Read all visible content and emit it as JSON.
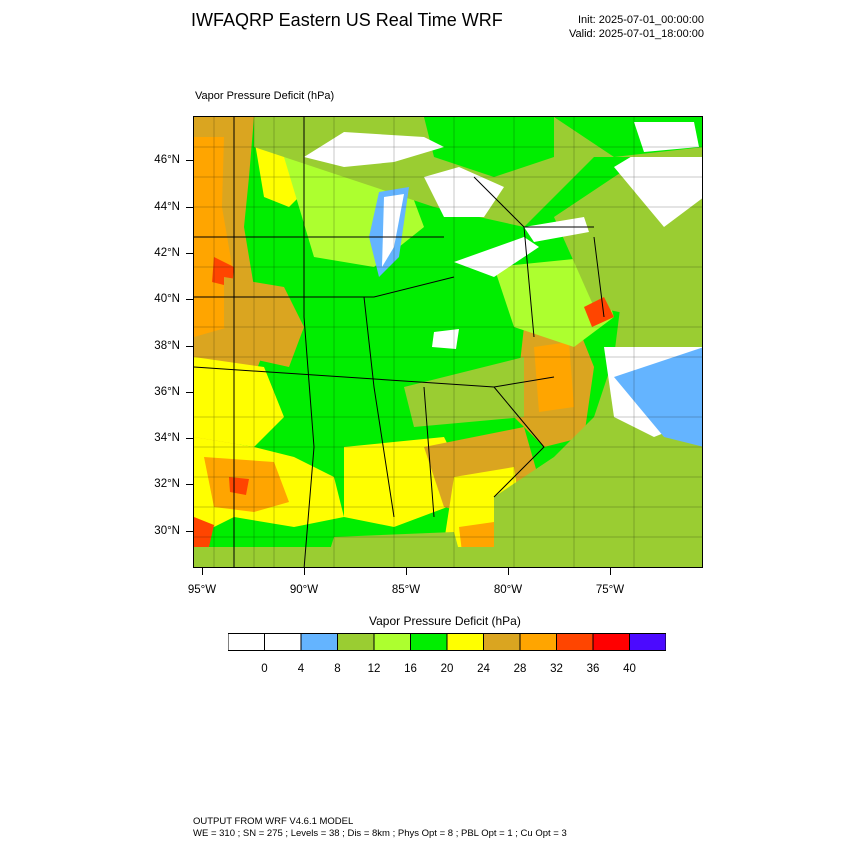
{
  "header": {
    "title": "IWFAQRP Eastern US Real Time WRF",
    "init": "Init: 2025-07-01_00:00:00",
    "valid": "Valid: 2025-07-01_18:00:00"
  },
  "plot": {
    "field_label": "Vapor Pressure Deficit   (hPa)"
  },
  "axes": {
    "lat_labels": [
      "46°N",
      "44°N",
      "42°N",
      "40°N",
      "38°N",
      "36°N",
      "34°N",
      "32°N",
      "30°N"
    ],
    "lon_labels": [
      "95°W",
      "90°W",
      "85°W",
      "80°W",
      "75°W"
    ]
  },
  "colorbar": {
    "title": "Vapor Pressure Deficit   (hPa)",
    "colors": [
      "#ffffff",
      "#ffffff",
      "#64b4ff",
      "#9acd32",
      "#adff2f",
      "#00ee00",
      "#ffff00",
      "#daa520",
      "#ffa500",
      "#ff4500",
      "#ff0000",
      "#4b0aff"
    ],
    "labels": [
      "0",
      "4",
      "8",
      "12",
      "16",
      "20",
      "24",
      "28",
      "32",
      "36",
      "40"
    ]
  },
  "footer": {
    "line1": "OUTPUT FROM WRF V4.6.1 MODEL",
    "line2": "WE = 310 ; SN = 275 ; Levels = 38 ; Dis = 8km ; Phys Opt = 8 ; PBL Opt = 1 ; Cu Opt = 3"
  }
}
